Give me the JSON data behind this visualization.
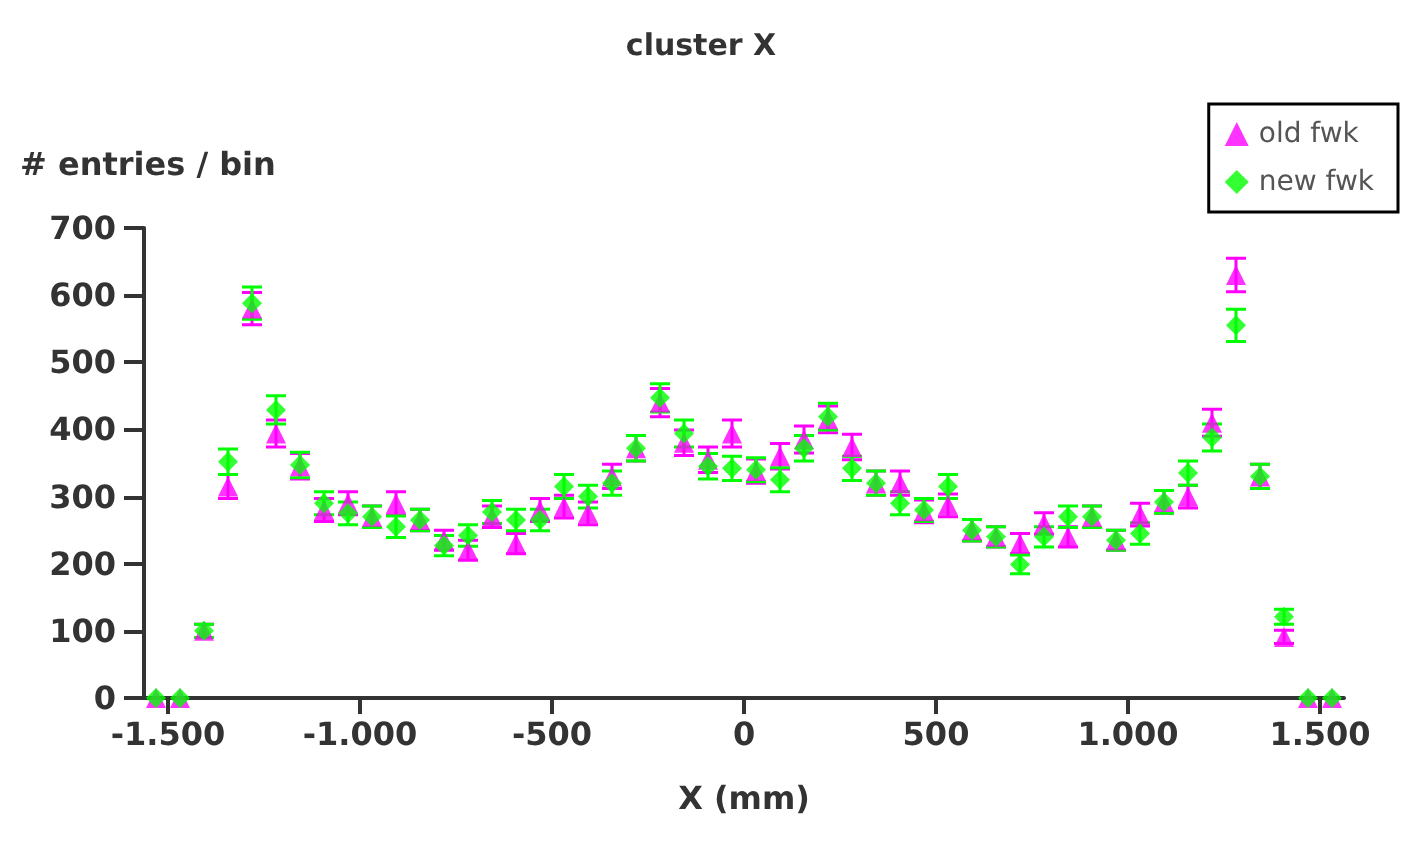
{
  "chart_data": {
    "type": "scatter",
    "title": "cluster X",
    "xlabel": "X (mm)",
    "ylabel": "# entries / bin",
    "x": [
      -1531.25,
      -1468.75,
      -1406.25,
      -1343.75,
      -1281.25,
      -1218.75,
      -1156.25,
      -1093.75,
      -1031.25,
      -968.75,
      -906.25,
      -843.75,
      -781.25,
      -718.75,
      -656.25,
      -593.75,
      -531.25,
      -468.75,
      -406.25,
      -343.75,
      -281.25,
      -218.75,
      -156.25,
      -93.75,
      -31.25,
      31.25,
      93.75,
      156.25,
      218.75,
      281.25,
      343.75,
      406.25,
      468.75,
      531.25,
      593.75,
      656.25,
      718.75,
      781.25,
      843.75,
      906.25,
      968.75,
      1031.25,
      1093.75,
      1156.25,
      1218.75,
      1281.25,
      1343.75,
      1406.25,
      1468.75,
      1531.25
    ],
    "series": [
      {
        "name": "old fwk",
        "color": "#ff00ff",
        "marker": "triangle",
        "values": [
          0,
          0,
          100,
          315,
          580,
          394,
          345,
          280,
          290,
          270,
          290,
          265,
          235,
          220,
          270,
          230,
          280,
          285,
          275,
          330,
          372,
          440,
          380,
          355,
          394,
          338,
          360,
          385,
          415,
          374,
          320,
          320,
          278,
          287,
          250,
          240,
          230,
          260,
          240,
          270,
          235,
          273,
          292,
          300,
          410,
          630,
          330,
          91,
          0,
          0
        ],
        "errors": [
          null,
          null,
          10,
          18,
          24,
          20,
          19,
          17,
          17,
          16,
          17,
          16,
          15,
          15,
          16,
          15,
          17,
          17,
          17,
          18,
          19,
          21,
          19,
          19,
          20,
          18,
          19,
          20,
          20,
          19,
          18,
          18,
          17,
          17,
          16,
          15,
          15,
          16,
          15,
          16,
          15,
          17,
          17,
          17,
          20,
          25,
          18,
          10,
          null,
          null
        ]
      },
      {
        "name": "new fwk",
        "color": "#00ff00",
        "marker": "diamond",
        "values": [
          0,
          0,
          100,
          352,
          588,
          429,
          347,
          290,
          275,
          270,
          255,
          265,
          227,
          242,
          277,
          265,
          265,
          315,
          300,
          320,
          372,
          447,
          394,
          345,
          342,
          340,
          325,
          372,
          419,
          342,
          320,
          290,
          280,
          315,
          250,
          240,
          199,
          240,
          270,
          270,
          235,
          245,
          292,
          335,
          388,
          555,
          330,
          121,
          0,
          0
        ],
        "errors": [
          null,
          null,
          10,
          19,
          24,
          21,
          19,
          17,
          17,
          16,
          16,
          16,
          15,
          16,
          17,
          16,
          16,
          18,
          17,
          18,
          19,
          21,
          20,
          19,
          18,
          18,
          18,
          19,
          20,
          18,
          18,
          17,
          17,
          18,
          16,
          15,
          14,
          15,
          16,
          16,
          15,
          16,
          17,
          18,
          20,
          24,
          18,
          11,
          null,
          null
        ]
      }
    ],
    "xlim": [
      -1562.5,
      1562.5
    ],
    "xticks": [
      {
        "value": -1500,
        "label": "-1.500"
      },
      {
        "value": -1000,
        "label": "-1.000"
      },
      -500,
      0,
      500,
      {
        "value": 1000,
        "label": "1.000"
      },
      {
        "value": 1500,
        "label": "1.500"
      }
    ],
    "ylim": [
      0,
      700
    ],
    "yticks": [
      0,
      100,
      200,
      300,
      400,
      500,
      600,
      700
    ],
    "grid": false,
    "legend": "top right"
  }
}
